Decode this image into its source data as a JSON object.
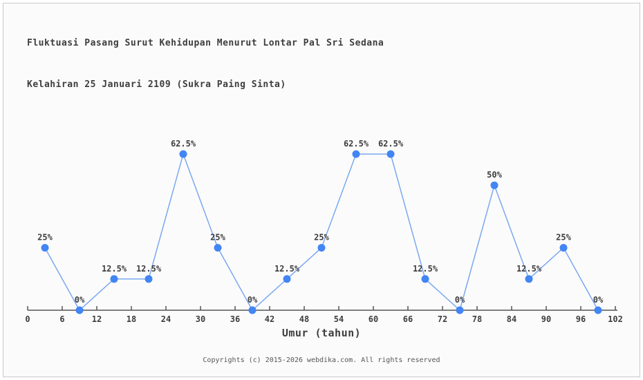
{
  "header": {
    "title_line1": "Fluktuasi Pasang Surut Kehidupan Menurut Lontar Pal Sri Sedana",
    "title_line2": "Kelahiran 25 Januari 2109 (Sukra Paing Sinta)"
  },
  "chart_data": {
    "type": "line",
    "title": "Fluktuasi Pasang Surut Kehidupan Menurut Lontar Pal Sri Sedana Kelahiran 25 Januari 2109 (Sukra Paing Sinta)",
    "x": [
      3,
      9,
      15,
      21,
      27,
      33,
      39,
      45,
      51,
      57,
      63,
      69,
      75,
      81,
      87,
      93,
      99
    ],
    "values": [
      25,
      0,
      12.5,
      12.5,
      62.5,
      25,
      0,
      12.5,
      25,
      62.5,
      62.5,
      12.5,
      0,
      50,
      12.5,
      25,
      0
    ],
    "point_labels": [
      "25%",
      "0%",
      "12.5%",
      "12.5%",
      "62.5%",
      "25%",
      "0%",
      "12.5%",
      "25%",
      "62.5%",
      "62.5%",
      "12.5%",
      "0%",
      "50%",
      "12.5%",
      "25%",
      "0%"
    ],
    "xlabel": "Umur (tahun)",
    "ylabel": "",
    "x_ticks": [
      0,
      6,
      12,
      18,
      24,
      30,
      36,
      42,
      48,
      54,
      60,
      66,
      72,
      78,
      84,
      90,
      96,
      102
    ],
    "xlim": [
      0,
      102
    ],
    "ylim": [
      0,
      100
    ],
    "grid": false,
    "legend": false,
    "colors": {
      "marker": "#4285f4",
      "line": "#7aa8f0",
      "axis": "#555555",
      "tick_label": "#3d3d3d",
      "point_label": "#3d3d3d"
    }
  },
  "footer": {
    "copyright": "Copyrights (c) 2015-2026 webdika.com. All rights reserved"
  }
}
